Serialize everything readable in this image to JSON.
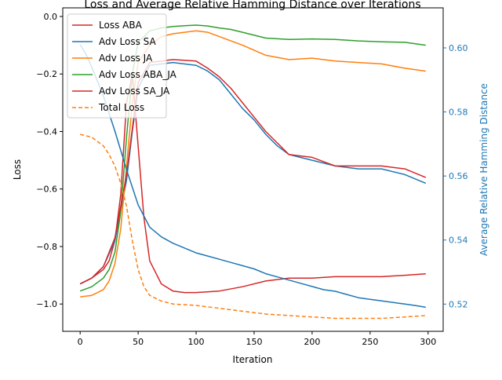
{
  "chart_data": {
    "type": "line",
    "title": "Loss and Average Relative Hamming Distance over Iterations",
    "xlabel": "Iteration",
    "ylabel": "Loss",
    "ylabel_right": "Average Relative Hamming Distance",
    "xlim": [
      -15,
      313
    ],
    "ylim": [
      -1.095,
      0.03
    ],
    "ylim_right": [
      0.5115,
      0.6125
    ],
    "x_ticks": [
      0,
      50,
      100,
      150,
      200,
      250,
      300
    ],
    "y_ticks": [
      0.0,
      -0.2,
      -0.4,
      -0.6,
      -0.8,
      -1.0
    ],
    "y_ticks_right": [
      0.52,
      0.54,
      0.56,
      0.58,
      0.6
    ],
    "legend_placement": "top-left",
    "colors": {
      "loss_aba": "#d62728",
      "adv_sa": "#1f77b4",
      "adv_ja": "#ff7f0e",
      "adv_aba_ja": "#2ca02c",
      "adv_sa_ja": "#d62728",
      "total": "#ff7f0e",
      "right_axis": "#1f77b4"
    },
    "series": [
      {
        "name": "Loss ABA",
        "axis": "left",
        "dash": false,
        "color": "#d62728",
        "x": [
          0,
          10,
          20,
          25,
          30,
          35,
          40,
          45,
          50,
          55,
          60,
          70,
          80,
          90,
          100,
          120,
          140,
          160,
          180,
          200,
          220,
          240,
          260,
          280,
          298
        ],
        "y": [
          -0.93,
          -0.91,
          -0.88,
          -0.85,
          -0.78,
          -0.62,
          -0.3,
          -0.2,
          -0.45,
          -0.7,
          -0.85,
          -0.93,
          -0.955,
          -0.96,
          -0.96,
          -0.955,
          -0.94,
          -0.92,
          -0.91,
          -0.91,
          -0.905,
          -0.905,
          -0.905,
          -0.9,
          -0.895
        ]
      },
      {
        "name": "Adv Loss SA",
        "axis": "left",
        "dash": false,
        "color": "#1f77b4",
        "x": [
          0,
          10,
          20,
          30,
          40,
          45,
          50,
          60,
          80,
          100,
          110,
          120,
          130,
          140,
          150,
          160,
          170,
          180,
          200,
          220,
          240,
          260,
          280,
          298
        ],
        "y": [
          -0.93,
          -0.91,
          -0.87,
          -0.78,
          -0.57,
          -0.4,
          -0.25,
          -0.17,
          -0.16,
          -0.17,
          -0.19,
          -0.22,
          -0.27,
          -0.32,
          -0.36,
          -0.41,
          -0.45,
          -0.48,
          -0.5,
          -0.52,
          -0.53,
          -0.53,
          -0.55,
          -0.58
        ]
      },
      {
        "name": "Adv Loss JA",
        "axis": "left",
        "dash": false,
        "color": "#ff7f0e",
        "x": [
          0,
          10,
          20,
          25,
          30,
          35,
          40,
          45,
          50,
          60,
          70,
          80,
          90,
          100,
          110,
          120,
          140,
          160,
          180,
          200,
          220,
          240,
          260,
          280,
          298
        ],
        "y": [
          -0.975,
          -0.97,
          -0.95,
          -0.92,
          -0.86,
          -0.74,
          -0.52,
          -0.3,
          -0.16,
          -0.1,
          -0.07,
          -0.06,
          -0.055,
          -0.05,
          -0.055,
          -0.07,
          -0.1,
          -0.135,
          -0.15,
          -0.145,
          -0.155,
          -0.16,
          -0.165,
          -0.18,
          -0.19
        ]
      },
      {
        "name": "Adv Loss ABA_JA",
        "axis": "left",
        "dash": false,
        "color": "#2ca02c",
        "x": [
          0,
          10,
          20,
          25,
          30,
          35,
          40,
          45,
          50,
          60,
          70,
          80,
          90,
          100,
          110,
          120,
          130,
          140,
          160,
          180,
          200,
          220,
          240,
          260,
          280,
          298
        ],
        "y": [
          -0.955,
          -0.94,
          -0.91,
          -0.88,
          -0.82,
          -0.68,
          -0.42,
          -0.2,
          -0.09,
          -0.05,
          -0.04,
          -0.035,
          -0.032,
          -0.03,
          -0.033,
          -0.04,
          -0.045,
          -0.055,
          -0.075,
          -0.08,
          -0.078,
          -0.08,
          -0.085,
          -0.088,
          -0.09,
          -0.1
        ]
      },
      {
        "name": "Adv Loss SA_JA",
        "axis": "left",
        "dash": false,
        "color": "#d62728",
        "x": [
          0,
          10,
          20,
          30,
          40,
          50,
          60,
          80,
          100,
          110,
          120,
          130,
          140,
          150,
          160,
          170,
          180,
          200,
          220,
          240,
          260,
          280,
          298
        ],
        "y": [
          -0.93,
          -0.91,
          -0.87,
          -0.77,
          -0.55,
          -0.23,
          -0.16,
          -0.15,
          -0.155,
          -0.18,
          -0.21,
          -0.25,
          -0.3,
          -0.35,
          -0.4,
          -0.44,
          -0.48,
          -0.49,
          -0.52,
          -0.52,
          -0.52,
          -0.53,
          -0.56
        ]
      },
      {
        "name": "Total Loss",
        "axis": "left",
        "dash": true,
        "color": "#ff7f0e",
        "x": [
          0,
          10,
          20,
          25,
          30,
          35,
          40,
          45,
          50,
          55,
          60,
          70,
          80,
          100,
          120,
          140,
          160,
          180,
          200,
          220,
          240,
          260,
          280,
          298
        ],
        "y": [
          -0.41,
          -0.42,
          -0.45,
          -0.48,
          -0.52,
          -0.58,
          -0.66,
          -0.78,
          -0.88,
          -0.94,
          -0.97,
          -0.99,
          -1.0,
          -1.005,
          -1.015,
          -1.025,
          -1.035,
          -1.04,
          -1.045,
          -1.05,
          -1.05,
          -1.05,
          -1.045,
          -1.04
        ]
      },
      {
        "name": "",
        "axis": "right",
        "dash": false,
        "color": "#1f77b4",
        "x": [
          0,
          5,
          10,
          20,
          30,
          40,
          50,
          60,
          70,
          80,
          90,
          100,
          110,
          120,
          130,
          140,
          150,
          160,
          170,
          180,
          190,
          200,
          210,
          220,
          230,
          240,
          250,
          260,
          270,
          280,
          290,
          298
        ],
        "y": [
          0.601,
          0.598,
          0.594,
          0.585,
          0.574,
          0.562,
          0.551,
          0.544,
          0.541,
          0.539,
          0.5375,
          0.536,
          0.535,
          0.534,
          0.533,
          0.532,
          0.531,
          0.5295,
          0.5285,
          0.5275,
          0.5265,
          0.5255,
          0.5245,
          0.524,
          0.523,
          0.522,
          0.5215,
          0.521,
          0.5205,
          0.52,
          0.5195,
          0.519
        ]
      }
    ]
  }
}
